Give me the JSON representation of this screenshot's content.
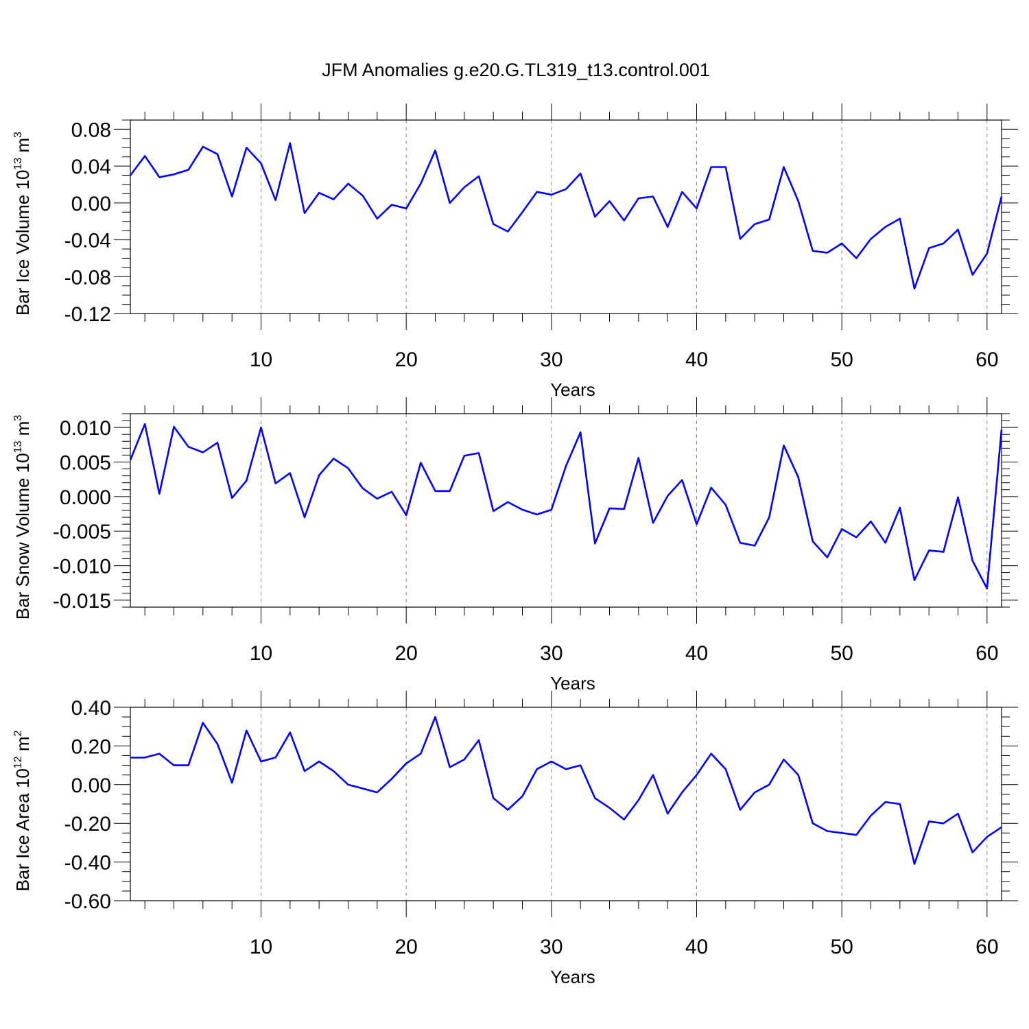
{
  "figure": {
    "title": "JFM Anomalies g.e20.G.TL319_t13.control.001"
  },
  "colors": {
    "series": "#0000ff",
    "axis": "#000000",
    "grid": "#888888"
  },
  "chart_data": [
    {
      "type": "line",
      "title": "",
      "xlabel": "Years",
      "ylabel": {
        "prefix": "Bar Ice Volume 10",
        "exp": "13",
        "unit": " m",
        "unit_exp": "3"
      },
      "xlim": [
        1,
        61
      ],
      "ylim": [
        -0.12,
        0.09
      ],
      "xticks": [
        10,
        20,
        30,
        40,
        50,
        60
      ],
      "yticks": [
        0.08,
        0.04,
        0.0,
        -0.04,
        -0.08,
        -0.12
      ],
      "ytick_labels": [
        "0.08",
        "0.04",
        "0.00",
        "-0.04",
        "-0.08",
        "-0.12"
      ],
      "ytick_minor_step": 0.01,
      "grid": "vertical dashed at major x ticks",
      "series": [
        {
          "name": "Bar Ice Volume",
          "x": [
            1,
            2,
            3,
            4,
            5,
            6,
            7,
            8,
            9,
            10,
            11,
            12,
            13,
            14,
            15,
            16,
            17,
            18,
            19,
            20,
            21,
            22,
            23,
            24,
            25,
            26,
            27,
            28,
            29,
            30,
            31,
            32,
            33,
            34,
            35,
            36,
            37,
            38,
            39,
            40,
            41,
            42,
            43,
            44,
            45,
            46,
            47,
            48,
            49,
            50,
            51,
            52,
            53,
            54,
            55,
            56,
            57,
            58,
            59,
            60,
            61
          ],
          "values": [
            0.03,
            0.051,
            0.028,
            0.031,
            0.036,
            0.061,
            0.053,
            0.007,
            0.06,
            0.043,
            0.003,
            0.065,
            -0.011,
            0.011,
            0.004,
            0.021,
            0.008,
            -0.017,
            -0.002,
            -0.006,
            0.021,
            0.057,
            0.0,
            0.017,
            0.029,
            -0.023,
            -0.031,
            -0.01,
            0.012,
            0.009,
            0.015,
            0.032,
            -0.015,
            0.002,
            -0.019,
            0.005,
            0.007,
            -0.026,
            0.012,
            -0.006,
            0.039,
            0.039,
            -0.039,
            -0.023,
            -0.018,
            0.039,
            0.002,
            -0.052,
            -0.054,
            -0.044,
            -0.06,
            -0.039,
            -0.026,
            -0.017,
            -0.093,
            -0.049,
            -0.044,
            -0.029,
            -0.078,
            -0.055,
            0.007
          ]
        }
      ]
    },
    {
      "type": "line",
      "title": "",
      "xlabel": "Years",
      "ylabel": {
        "prefix": "Bar Snow Volume 10",
        "exp": "13",
        "unit": " m",
        "unit_exp": "3"
      },
      "xlim": [
        1,
        61
      ],
      "ylim": [
        -0.016,
        0.012
      ],
      "xticks": [
        10,
        20,
        30,
        40,
        50,
        60
      ],
      "yticks": [
        0.01,
        0.005,
        0.0,
        -0.005,
        -0.01,
        -0.015
      ],
      "ytick_labels": [
        "0.010",
        "0.005",
        "0.000",
        "-0.005",
        "-0.010",
        "-0.015"
      ],
      "ytick_minor_step": 0.001,
      "grid": "vertical dashed at major x ticks",
      "series": [
        {
          "name": "Bar Snow Volume",
          "x": [
            1,
            2,
            3,
            4,
            5,
            6,
            7,
            8,
            9,
            10,
            11,
            12,
            13,
            14,
            15,
            16,
            17,
            18,
            19,
            20,
            21,
            22,
            23,
            24,
            25,
            26,
            27,
            28,
            29,
            30,
            31,
            32,
            33,
            34,
            35,
            36,
            37,
            38,
            39,
            40,
            41,
            42,
            43,
            44,
            45,
            46,
            47,
            48,
            49,
            50,
            51,
            52,
            53,
            54,
            55,
            56,
            57,
            58,
            59,
            60,
            61
          ],
          "values": [
            0.0053,
            0.0105,
            0.0004,
            0.0101,
            0.0072,
            0.0064,
            0.0078,
            -0.0002,
            0.0023,
            0.01,
            0.0019,
            0.0034,
            -0.003,
            0.0031,
            0.0055,
            0.0041,
            0.0012,
            -0.0003,
            0.0007,
            -0.0027,
            0.0049,
            0.0008,
            0.0008,
            0.0059,
            0.0063,
            -0.0021,
            -0.0008,
            -0.0019,
            -0.0026,
            -0.0019,
            0.0044,
            0.0093,
            -0.0068,
            -0.0017,
            -0.0018,
            0.0056,
            -0.0038,
            0.0001,
            0.0024,
            -0.004,
            0.0013,
            -0.0012,
            -0.0067,
            -0.0071,
            -0.003,
            0.0074,
            0.0028,
            -0.0065,
            -0.0088,
            -0.0047,
            -0.0059,
            -0.0036,
            -0.0067,
            -0.0016,
            -0.0121,
            -0.0078,
            -0.008,
            -0.0001,
            -0.0093,
            -0.0133,
            0.0097
          ]
        }
      ]
    },
    {
      "type": "line",
      "title": "",
      "xlabel": "Years",
      "ylabel": {
        "prefix": "Bar Ice Area 10",
        "exp": "12",
        "unit": " m",
        "unit_exp": "2"
      },
      "xlim": [
        1,
        61
      ],
      "ylim": [
        -0.6,
        0.4
      ],
      "xticks": [
        10,
        20,
        30,
        40,
        50,
        60
      ],
      "yticks": [
        0.4,
        0.2,
        0.0,
        -0.2,
        -0.4,
        -0.6
      ],
      "ytick_labels": [
        "0.40",
        "0.20",
        "0.00",
        "-0.20",
        "-0.40",
        "-0.60"
      ],
      "ytick_minor_step": 0.05,
      "grid": "vertical dashed at major x ticks",
      "series": [
        {
          "name": "Bar Ice Area",
          "x": [
            1,
            2,
            3,
            4,
            5,
            6,
            7,
            8,
            9,
            10,
            11,
            12,
            13,
            14,
            15,
            16,
            17,
            18,
            19,
            20,
            21,
            22,
            23,
            24,
            25,
            26,
            27,
            28,
            29,
            30,
            31,
            32,
            33,
            34,
            35,
            36,
            37,
            38,
            39,
            40,
            41,
            42,
            43,
            44,
            45,
            46,
            47,
            48,
            49,
            50,
            51,
            52,
            53,
            54,
            55,
            56,
            57,
            58,
            59,
            60,
            61
          ],
          "values": [
            0.14,
            0.14,
            0.16,
            0.1,
            0.1,
            0.32,
            0.21,
            0.01,
            0.28,
            0.12,
            0.14,
            0.27,
            0.07,
            0.12,
            0.07,
            0.0,
            -0.02,
            -0.04,
            0.03,
            0.11,
            0.16,
            0.35,
            0.09,
            0.13,
            0.23,
            -0.07,
            -0.13,
            -0.06,
            0.08,
            0.12,
            0.08,
            0.1,
            -0.07,
            -0.12,
            -0.18,
            -0.08,
            0.05,
            -0.15,
            -0.04,
            0.05,
            0.16,
            0.08,
            -0.13,
            -0.04,
            0.0,
            0.13,
            0.05,
            -0.2,
            -0.24,
            -0.25,
            -0.26,
            -0.16,
            -0.09,
            -0.1,
            -0.41,
            -0.19,
            -0.2,
            -0.15,
            -0.35,
            -0.27,
            -0.22
          ]
        }
      ]
    }
  ]
}
